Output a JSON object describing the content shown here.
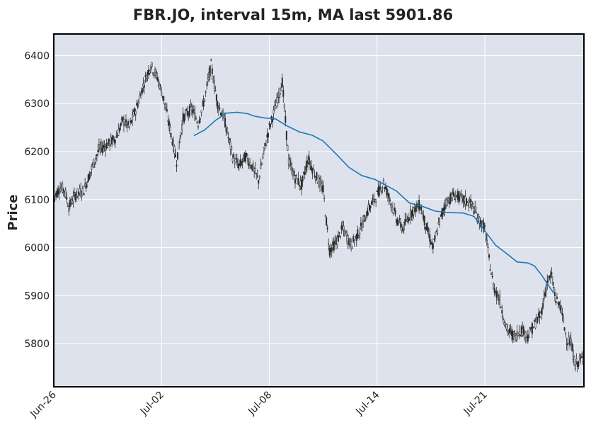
{
  "chart_data": {
    "type": "candlestick",
    "title": "FBR.JO, interval 15m, MA last 5901.86",
    "xlabel": "",
    "ylabel": "Price",
    "ylim": [
      5710,
      6445
    ],
    "yticks": [
      5800,
      5900,
      6000,
      6100,
      6200,
      6300,
      6400
    ],
    "xtick_labels": [
      "Jun-26",
      "Jul-02",
      "Jul-08",
      "Jul-14",
      "Jul-21"
    ],
    "xtick_positions": [
      0,
      100,
      200,
      300,
      400
    ],
    "x_range": [
      0,
      492
    ],
    "grid": true,
    "colors": {
      "background": "#dde2ed",
      "grid": "#ffffff",
      "candle": "#2a2a2a",
      "ma_line": "#1f77b4",
      "frame": "#000000"
    },
    "price_anchors": [
      [
        0,
        6105
      ],
      [
        6,
        6125
      ],
      [
        10,
        6120
      ],
      [
        14,
        6085
      ],
      [
        20,
        6110
      ],
      [
        28,
        6120
      ],
      [
        36,
        6170
      ],
      [
        42,
        6205
      ],
      [
        50,
        6215
      ],
      [
        58,
        6230
      ],
      [
        64,
        6265
      ],
      [
        70,
        6250
      ],
      [
        78,
        6300
      ],
      [
        84,
        6345
      ],
      [
        90,
        6380
      ],
      [
        96,
        6355
      ],
      [
        102,
        6310
      ],
      [
        108,
        6245
      ],
      [
        114,
        6180
      ],
      [
        120,
        6270
      ],
      [
        128,
        6290
      ],
      [
        134,
        6260
      ],
      [
        140,
        6310
      ],
      [
        146,
        6380
      ],
      [
        152,
        6300
      ],
      [
        158,
        6270
      ],
      [
        166,
        6190
      ],
      [
        172,
        6170
      ],
      [
        178,
        6190
      ],
      [
        184,
        6170
      ],
      [
        190,
        6140
      ],
      [
        196,
        6210
      ],
      [
        200,
        6250
      ],
      [
        206,
        6295
      ],
      [
        212,
        6345
      ],
      [
        218,
        6180
      ],
      [
        224,
        6145
      ],
      [
        230,
        6130
      ],
      [
        236,
        6185
      ],
      [
        242,
        6155
      ],
      [
        250,
        6120
      ],
      [
        252,
        6075
      ],
      [
        256,
        5995
      ],
      [
        262,
        6010
      ],
      [
        268,
        6040
      ],
      [
        276,
        6005
      ],
      [
        284,
        6035
      ],
      [
        292,
        6080
      ],
      [
        300,
        6110
      ],
      [
        306,
        6135
      ],
      [
        312,
        6100
      ],
      [
        318,
        6060
      ],
      [
        324,
        6040
      ],
      [
        332,
        6075
      ],
      [
        340,
        6090
      ],
      [
        346,
        6040
      ],
      [
        352,
        6000
      ],
      [
        358,
        6055
      ],
      [
        364,
        6095
      ],
      [
        372,
        6110
      ],
      [
        380,
        6100
      ],
      [
        388,
        6090
      ],
      [
        394,
        6060
      ],
      [
        400,
        6040
      ],
      [
        404,
        5975
      ],
      [
        408,
        5920
      ],
      [
        414,
        5890
      ],
      [
        420,
        5830
      ],
      [
        428,
        5815
      ],
      [
        434,
        5830
      ],
      [
        440,
        5815
      ],
      [
        446,
        5840
      ],
      [
        452,
        5860
      ],
      [
        458,
        5930
      ],
      [
        462,
        5940
      ],
      [
        466,
        5890
      ],
      [
        470,
        5880
      ],
      [
        476,
        5810
      ],
      [
        480,
        5800
      ],
      [
        484,
        5755
      ],
      [
        488,
        5765
      ],
      [
        492,
        5770
      ]
    ],
    "ma_line": [
      [
        130,
        6233
      ],
      [
        140,
        6245
      ],
      [
        150,
        6265
      ],
      [
        160,
        6280
      ],
      [
        170,
        6282
      ],
      [
        180,
        6279
      ],
      [
        186,
        6274
      ],
      [
        196,
        6270
      ],
      [
        206,
        6268
      ],
      [
        216,
        6254
      ],
      [
        228,
        6241
      ],
      [
        240,
        6234
      ],
      [
        250,
        6222
      ],
      [
        262,
        6195
      ],
      [
        274,
        6167
      ],
      [
        286,
        6150
      ],
      [
        298,
        6142
      ],
      [
        308,
        6130
      ],
      [
        318,
        6118
      ],
      [
        330,
        6093
      ],
      [
        342,
        6086
      ],
      [
        354,
        6076
      ],
      [
        366,
        6073
      ],
      [
        380,
        6072
      ],
      [
        390,
        6065
      ],
      [
        400,
        6035
      ],
      [
        410,
        6005
      ],
      [
        420,
        5988
      ],
      [
        430,
        5970
      ],
      [
        440,
        5968
      ],
      [
        446,
        5962
      ],
      [
        452,
        5945
      ],
      [
        458,
        5925
      ],
      [
        464,
        5905
      ]
    ]
  }
}
